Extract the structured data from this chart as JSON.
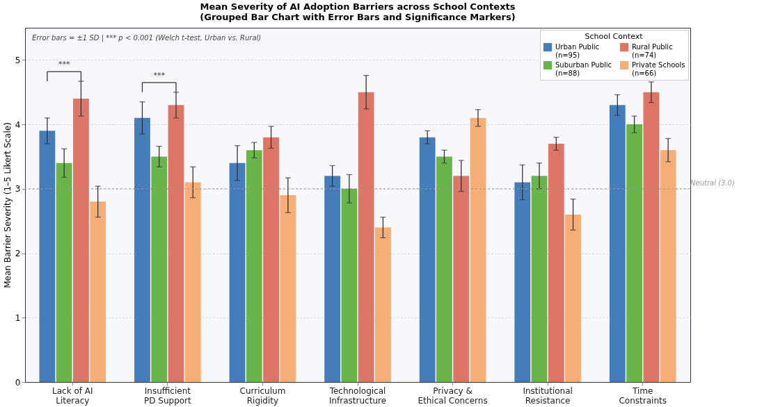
{
  "chart_data": {
    "type": "bar",
    "title": "Mean Severity of AI Adoption Barriers across School Contexts",
    "subtitle": "(Grouped Bar Chart with Error Bars and Significance Markers)",
    "ylabel": "Mean Barrier Severity (1–5 Likert Scale)",
    "legend_title": "School Context",
    "legend": "top right",
    "grid": "y",
    "categories": [
      "Lack of AI\nLiteracy",
      "Insufficient\nPD Support",
      "Curriculum\nRigidity",
      "Technological\nInfrastructure",
      "Privacy &\nEthical Concerns",
      "Institutional\nResistance",
      "Time\nConstraints"
    ],
    "series": [
      {
        "name": "Urban Public\n(n=95)",
        "color": "#3a76b5",
        "values": [
          3.9,
          4.1,
          3.4,
          3.2,
          3.8,
          3.1,
          4.3
        ],
        "errors": [
          0.2,
          0.25,
          0.27,
          0.16,
          0.1,
          0.27,
          0.16
        ]
      },
      {
        "name": "Suburban Public\n(n=88)",
        "color": "#62b13f",
        "values": [
          3.4,
          3.5,
          3.6,
          3.0,
          3.5,
          3.2,
          4.0
        ],
        "errors": [
          0.22,
          0.16,
          0.12,
          0.22,
          0.1,
          0.2,
          0.13
        ]
      },
      {
        "name": "Rural Public\n(n=74)",
        "color": "#db6f5e",
        "values": [
          4.4,
          4.3,
          3.8,
          4.5,
          3.2,
          3.7,
          4.5
        ],
        "errors": [
          0.27,
          0.2,
          0.17,
          0.26,
          0.24,
          0.1,
          0.16
        ]
      },
      {
        "name": "Private Schools\n(n=66)",
        "color": "#f4aa6e",
        "values": [
          2.8,
          3.1,
          2.9,
          2.4,
          4.1,
          2.6,
          3.6
        ],
        "errors": [
          0.24,
          0.24,
          0.27,
          0.16,
          0.13,
          0.24,
          0.18
        ]
      }
    ],
    "ylim": [
      0,
      5.5
    ],
    "yticks": [
      0,
      1,
      2,
      3,
      4,
      5
    ],
    "ref_lines": [
      {
        "axis": "y",
        "value": 3,
        "label": "Neutral (3.0)",
        "color": "#999999",
        "line_style": "dashed"
      }
    ],
    "annotations": [
      "Error bars = ±1 SD  |  *** p < 0.001 (Welch t-test, Urban vs. Rural)",
      "***",
      "***"
    ]
  }
}
